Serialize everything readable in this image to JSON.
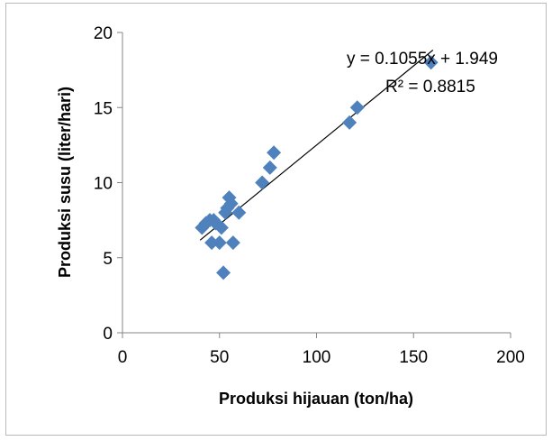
{
  "chart_data": {
    "type": "scatter",
    "title": "",
    "xlabel": "Produksi hijauan (ton/ha)",
    "ylabel": "Produksi susu (liter/hari)",
    "xlim": [
      0,
      200
    ],
    "ylim": [
      0,
      20
    ],
    "x_ticks": [
      0,
      50,
      100,
      150,
      200
    ],
    "y_ticks": [
      0,
      5,
      10,
      15,
      20
    ],
    "grid": false,
    "legend": "none",
    "marker": "diamond",
    "marker_color": "#4f81bd",
    "trendline_color": "#000000",
    "points": [
      {
        "x": 41,
        "y": 7
      },
      {
        "x": 43,
        "y": 7.3
      },
      {
        "x": 45,
        "y": 7.5
      },
      {
        "x": 46,
        "y": 6
      },
      {
        "x": 47,
        "y": 7.5
      },
      {
        "x": 48,
        "y": 7.3
      },
      {
        "x": 50,
        "y": 6
      },
      {
        "x": 51,
        "y": 7
      },
      {
        "x": 52,
        "y": 4
      },
      {
        "x": 53,
        "y": 8
      },
      {
        "x": 54,
        "y": 8.3
      },
      {
        "x": 55,
        "y": 9
      },
      {
        "x": 56,
        "y": 8.6
      },
      {
        "x": 57,
        "y": 6
      },
      {
        "x": 60,
        "y": 8
      },
      {
        "x": 72,
        "y": 10
      },
      {
        "x": 76,
        "y": 11
      },
      {
        "x": 78,
        "y": 12
      },
      {
        "x": 117,
        "y": 14
      },
      {
        "x": 121,
        "y": 15
      },
      {
        "x": 159,
        "y": 18
      }
    ],
    "trendline": {
      "slope": 0.1055,
      "intercept": 1.949,
      "x_start": 40,
      "x_end": 160
    },
    "equation": "y = 0.1055x + 1.949",
    "r_squared": "R² = 0.8815"
  }
}
